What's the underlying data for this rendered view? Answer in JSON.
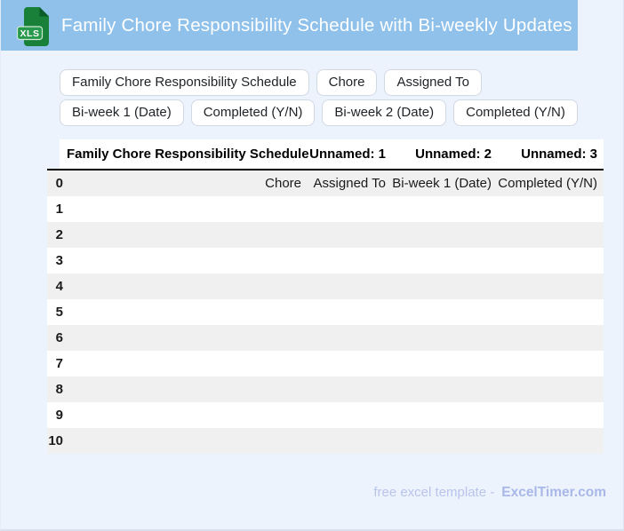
{
  "header": {
    "title": "Family Chore Responsibility Schedule with Bi-weekly Updates",
    "icon_label": "XLS"
  },
  "chips": [
    "Family Chore Responsibility Schedule",
    "Chore",
    "Assigned To",
    "Bi-week 1 (Date)",
    "Completed (Y/N)",
    "Bi-week 2 (Date)",
    "Completed (Y/N)"
  ],
  "table": {
    "columns": [
      "",
      "Family Chore Responsibility Schedule",
      "Unnamed: 1",
      "Unnamed: 2",
      "Unnamed: 3"
    ],
    "rows": [
      {
        "index": "0",
        "cells": [
          "Chore",
          "Assigned To",
          "Bi-week 1 (Date)",
          "Completed (Y/N)"
        ]
      },
      {
        "index": "1",
        "cells": [
          "",
          "",
          "",
          ""
        ]
      },
      {
        "index": "2",
        "cells": [
          "",
          "",
          "",
          ""
        ]
      },
      {
        "index": "3",
        "cells": [
          "",
          "",
          "",
          ""
        ]
      },
      {
        "index": "4",
        "cells": [
          "",
          "",
          "",
          ""
        ]
      },
      {
        "index": "5",
        "cells": [
          "",
          "",
          "",
          ""
        ]
      },
      {
        "index": "6",
        "cells": [
          "",
          "",
          "",
          ""
        ]
      },
      {
        "index": "7",
        "cells": [
          "",
          "",
          "",
          ""
        ]
      },
      {
        "index": "8",
        "cells": [
          "",
          "",
          "",
          ""
        ]
      },
      {
        "index": "9",
        "cells": [
          "",
          "",
          "",
          ""
        ]
      },
      {
        "index": "10",
        "cells": [
          "",
          "",
          "",
          ""
        ]
      }
    ]
  },
  "footer": {
    "prefix": "free excel template -",
    "brand": "ExcelTimer.com"
  },
  "colors": {
    "page_bg": "#edf3fc",
    "header_bg": "#8fc1ea",
    "chip_border": "#d3d9e2",
    "stripe": "#f0f0f0",
    "table_header_border": "#000000",
    "footer_text": "#b9c4ec",
    "footer_brand": "#a9b8e8",
    "icon_doc_green": "#188038",
    "icon_fold_green": "#0a5c28",
    "icon_badge_green": "#28994c"
  }
}
